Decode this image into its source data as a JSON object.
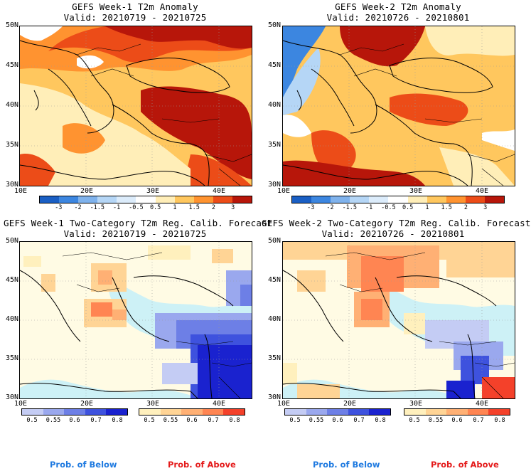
{
  "panels": [
    {
      "title": "GEFS Week-1 T2m Anomaly",
      "valid": "Valid: 20210719 - 20210725"
    },
    {
      "title": "GEFS Week-2 T2m Anomaly",
      "valid": "Valid: 20210726 - 20210801"
    },
    {
      "title": "GEFS Week-1 Two-Category T2m Reg. Calib. Forecast",
      "valid": "Valid: 20210719 - 20210725"
    },
    {
      "title": "GEFS Week-2 Two-Category T2m Reg. Calib. Forecast",
      "valid": "Valid: 20210726 - 20210801"
    }
  ],
  "lat_labels": [
    "50N",
    "45N",
    "40N",
    "35N",
    "30N"
  ],
  "lon_labels": [
    "10E",
    "20E",
    "30E",
    "40E"
  ],
  "anomaly_colorbar": {
    "labels": [
      "-3",
      "-2",
      "-1.5",
      "-1",
      "-0.5",
      "0.5",
      "1",
      "1.5",
      "2",
      "3"
    ],
    "colors": [
      "#1a5fc4",
      "#3c86e0",
      "#7fb2ec",
      "#b5d6f6",
      "#dcecfb",
      "#ffffff",
      "#ffeeb8",
      "#ffc75e",
      "#ff9330",
      "#ec4c18",
      "#b7160a"
    ]
  },
  "prob_below": {
    "labels": [
      "0.5",
      "0.55",
      "0.6",
      "0.7",
      "0.8"
    ],
    "colors": [
      "#c4ccf4",
      "#9aa8ee",
      "#6d7fe6",
      "#3e52de",
      "#1a22cf"
    ],
    "caption": "Prob. of Below",
    "caption_color": "#1f7ae0"
  },
  "prob_above": {
    "labels": [
      "0.5",
      "0.55",
      "0.6",
      "0.7",
      "0.8"
    ],
    "colors": [
      "#fff0bd",
      "#ffd495",
      "#ffb074",
      "#ff8552",
      "#f4412a"
    ],
    "caption": "Prob. of Above",
    "caption_color": "#e41a1a"
  },
  "map_colors": {
    "sea": "#cdf1f6",
    "land_neutral": "#fffbe4"
  }
}
